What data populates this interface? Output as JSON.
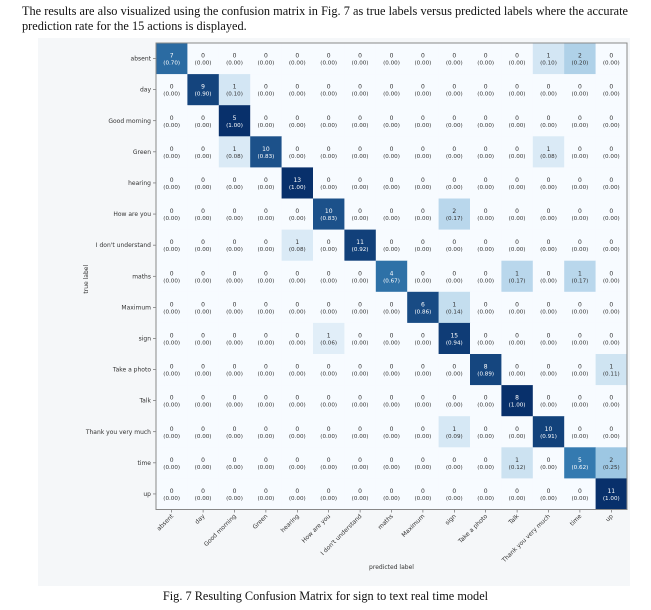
{
  "paragraph": "The results are also visualized using the confusion matrix in Fig. 7 as true labels versus predicted labels where the accurate prediction rate for the 15 actions is displayed.",
  "caption": "Fig. 7 Resulting Confusion Matrix for sign to text real time model",
  "chart_data": {
    "type": "heatmap",
    "title": "",
    "xlabel": "predicted label",
    "ylabel": "true label",
    "colormap": "Blues",
    "color_low": "#f7fbff",
    "color_high": "#08306b",
    "labels": [
      "absent",
      "day",
      "Good morning",
      "Green",
      "hearing",
      "How are you",
      "I don't understand",
      "maths",
      "Maximum",
      "sign",
      "Take a photo",
      "Talk",
      "Thank you very much",
      "time",
      "up"
    ],
    "counts": [
      [
        7,
        0,
        0,
        0,
        0,
        0,
        0,
        0,
        0,
        0,
        0,
        0,
        1,
        2,
        0
      ],
      [
        0,
        9,
        1,
        0,
        0,
        0,
        0,
        0,
        0,
        0,
        0,
        0,
        0,
        0,
        0
      ],
      [
        0,
        0,
        5,
        0,
        0,
        0,
        0,
        0,
        0,
        0,
        0,
        0,
        0,
        0,
        0
      ],
      [
        0,
        0,
        1,
        10,
        0,
        0,
        0,
        0,
        0,
        0,
        0,
        0,
        1,
        0,
        0
      ],
      [
        0,
        0,
        0,
        0,
        13,
        0,
        0,
        0,
        0,
        0,
        0,
        0,
        0,
        0,
        0
      ],
      [
        0,
        0,
        0,
        0,
        0,
        10,
        0,
        0,
        0,
        2,
        0,
        0,
        0,
        0,
        0
      ],
      [
        0,
        0,
        0,
        0,
        1,
        0,
        11,
        0,
        0,
        0,
        0,
        0,
        0,
        0,
        0
      ],
      [
        0,
        0,
        0,
        0,
        0,
        0,
        0,
        4,
        0,
        0,
        0,
        1,
        0,
        1,
        0
      ],
      [
        0,
        0,
        0,
        0,
        0,
        0,
        0,
        0,
        6,
        1,
        0,
        0,
        0,
        0,
        0
      ],
      [
        0,
        0,
        0,
        0,
        0,
        1,
        0,
        0,
        0,
        15,
        0,
        0,
        0,
        0,
        0
      ],
      [
        0,
        0,
        0,
        0,
        0,
        0,
        0,
        0,
        0,
        0,
        8,
        0,
        0,
        0,
        1
      ],
      [
        0,
        0,
        0,
        0,
        0,
        0,
        0,
        0,
        0,
        0,
        0,
        8,
        0,
        0,
        0
      ],
      [
        0,
        0,
        0,
        0,
        0,
        0,
        0,
        0,
        0,
        1,
        0,
        0,
        10,
        0,
        0
      ],
      [
        0,
        0,
        0,
        0,
        0,
        0,
        0,
        0,
        0,
        0,
        0,
        1,
        0,
        5,
        2
      ],
      [
        0,
        0,
        0,
        0,
        0,
        0,
        0,
        0,
        0,
        0,
        0,
        0,
        0,
        0,
        11
      ]
    ],
    "fractions": [
      [
        0.7,
        0,
        0,
        0,
        0,
        0,
        0,
        0,
        0,
        0,
        0,
        0,
        0.1,
        0.2,
        0
      ],
      [
        0,
        0.9,
        0.1,
        0,
        0,
        0,
        0,
        0,
        0,
        0,
        0,
        0,
        0,
        0,
        0
      ],
      [
        0,
        0,
        1.0,
        0,
        0,
        0,
        0,
        0,
        0,
        0,
        0,
        0,
        0,
        0,
        0
      ],
      [
        0,
        0,
        0.08,
        0.83,
        0,
        0,
        0,
        0,
        0,
        0,
        0,
        0,
        0.08,
        0,
        0
      ],
      [
        0,
        0,
        0,
        0,
        1.0,
        0,
        0,
        0,
        0,
        0,
        0,
        0,
        0,
        0,
        0
      ],
      [
        0,
        0,
        0,
        0,
        0,
        0.83,
        0,
        0,
        0,
        0.17,
        0,
        0,
        0,
        0,
        0
      ],
      [
        0,
        0,
        0,
        0,
        0.08,
        0,
        0.92,
        0,
        0,
        0,
        0,
        0,
        0,
        0,
        0
      ],
      [
        0,
        0,
        0,
        0,
        0,
        0,
        0,
        0.67,
        0,
        0,
        0,
        0.17,
        0,
        0.17,
        0
      ],
      [
        0,
        0,
        0,
        0,
        0,
        0,
        0,
        0,
        0.86,
        0.14,
        0,
        0,
        0,
        0,
        0
      ],
      [
        0,
        0,
        0,
        0,
        0,
        0.06,
        0,
        0,
        0,
        0.94,
        0,
        0,
        0,
        0,
        0
      ],
      [
        0,
        0,
        0,
        0,
        0,
        0,
        0,
        0,
        0,
        0,
        0.89,
        0,
        0,
        0,
        0.11
      ],
      [
        0,
        0,
        0,
        0,
        0,
        0,
        0,
        0,
        0,
        0,
        0,
        1.0,
        0,
        0,
        0
      ],
      [
        0,
        0,
        0,
        0,
        0,
        0,
        0,
        0,
        0,
        0.09,
        0,
        0,
        0.91,
        0,
        0
      ],
      [
        0,
        0,
        0,
        0,
        0,
        0,
        0,
        0,
        0,
        0,
        0,
        0.12,
        0,
        0.62,
        0.25
      ],
      [
        0,
        0,
        0,
        0,
        0,
        0,
        0,
        0,
        0,
        0,
        0,
        0,
        0,
        0,
        1.0
      ]
    ]
  }
}
